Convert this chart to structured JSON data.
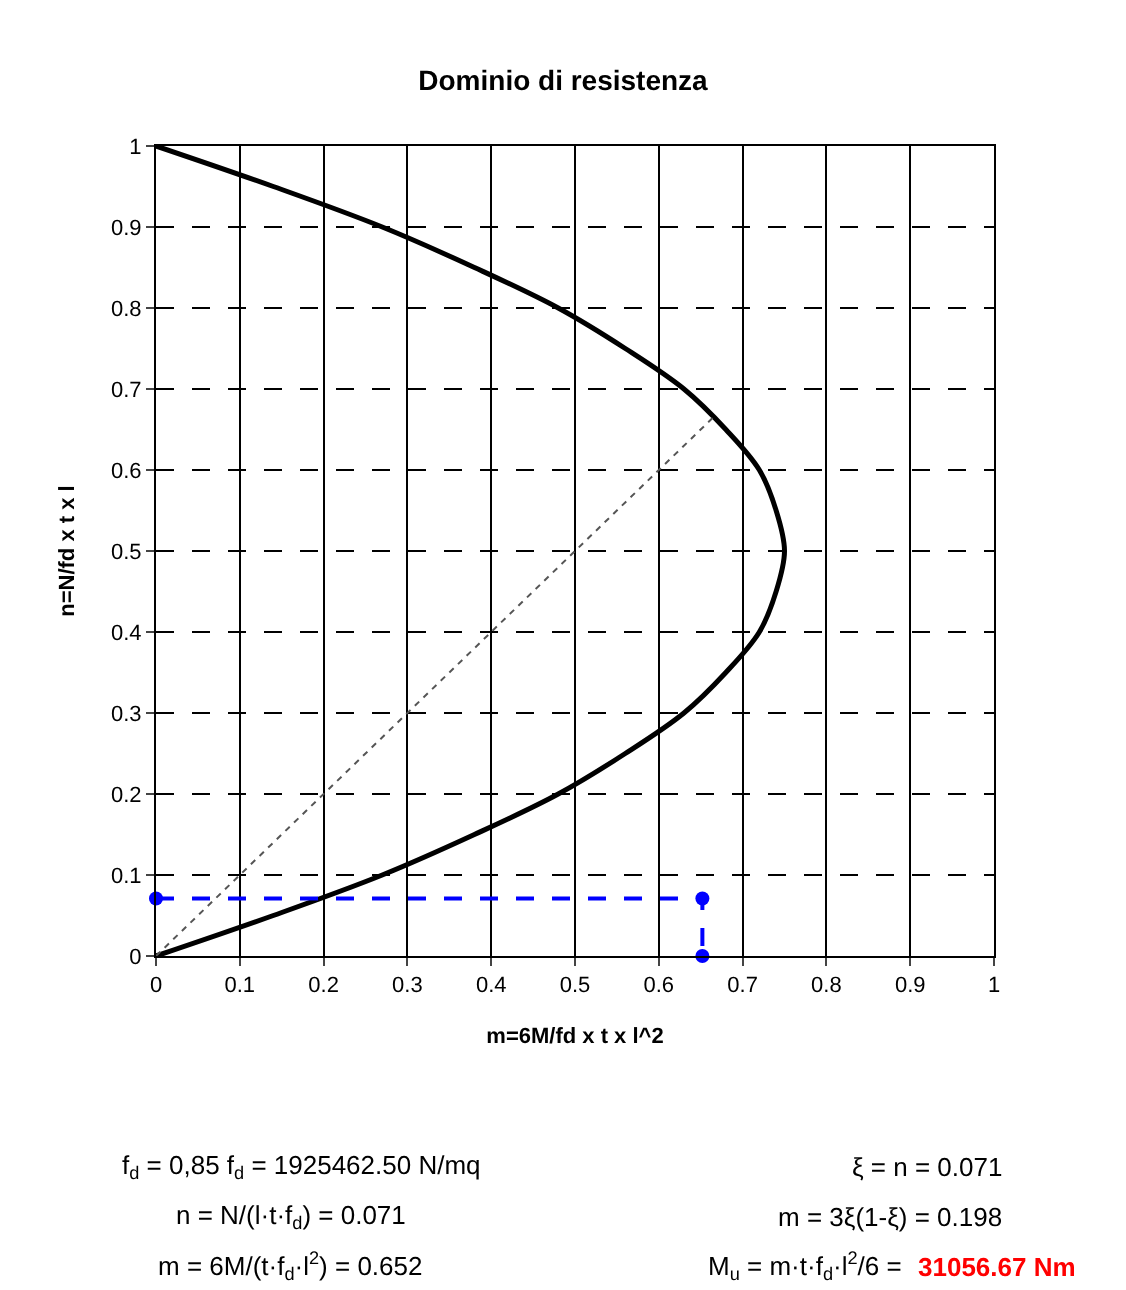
{
  "chart_data": {
    "type": "line",
    "title": "Dominio di resistenza",
    "xlabel": "m=6M/fd x t x l^2",
    "ylabel": "n=N/fd x t x l",
    "xlim": [
      0,
      1
    ],
    "xticks": [
      0,
      0.1,
      0.2,
      0.3,
      0.4,
      0.5,
      0.6,
      0.7,
      0.8,
      0.9,
      1
    ],
    "ylim": [
      0,
      1
    ],
    "yticks": [
      0,
      0.1,
      0.2,
      0.3,
      0.4,
      0.5,
      0.6,
      0.7,
      0.8,
      0.9,
      1
    ],
    "grid": true,
    "series": [
      {
        "color": "#000000",
        "line_style": "solid",
        "marker": "none",
        "x": [
          0,
          0.14,
          0.27,
          0.38,
          0.48,
          0.56,
          0.63,
          0.68,
          0.72,
          0.74,
          0.75,
          0.74,
          0.72,
          0.68,
          0.63,
          0.56,
          0.48,
          0.38,
          0.27,
          0.14,
          0
        ],
        "values": [
          0,
          0.05,
          0.1,
          0.15,
          0.2,
          0.25,
          0.3,
          0.35,
          0.4,
          0.45,
          0.5,
          0.55,
          0.6,
          0.65,
          0.7,
          0.75,
          0.8,
          0.85,
          0.9,
          0.95,
          1
        ]
      },
      {
        "color": "#555555",
        "line_style": "dotted",
        "marker": "none",
        "x": [
          0,
          0.667
        ],
        "values": [
          0,
          0.667
        ]
      },
      {
        "color": "#0000ff",
        "line_style": "dashed",
        "marker": "circle",
        "x": [
          0,
          0.652,
          0.652
        ],
        "values": [
          0.071,
          0.071,
          0
        ]
      }
    ],
    "annotations": [
      "f$_{d}$ = 0,85 f$_{d}$ = 1925462.50 N/mq",
      "n = N/(l·t·f$_{d}$) = 0.071",
      "m = 6M/(t·f$_{d}$·l$^{2}$) = 0.652",
      "ξ = n = 0.071",
      "m = 3ξ(1-ξ) = 0.198",
      "M$_{u}$ = m·t·f$_{d}$·l$^{2}$/6 =",
      "31056.67 Nm"
    ]
  }
}
